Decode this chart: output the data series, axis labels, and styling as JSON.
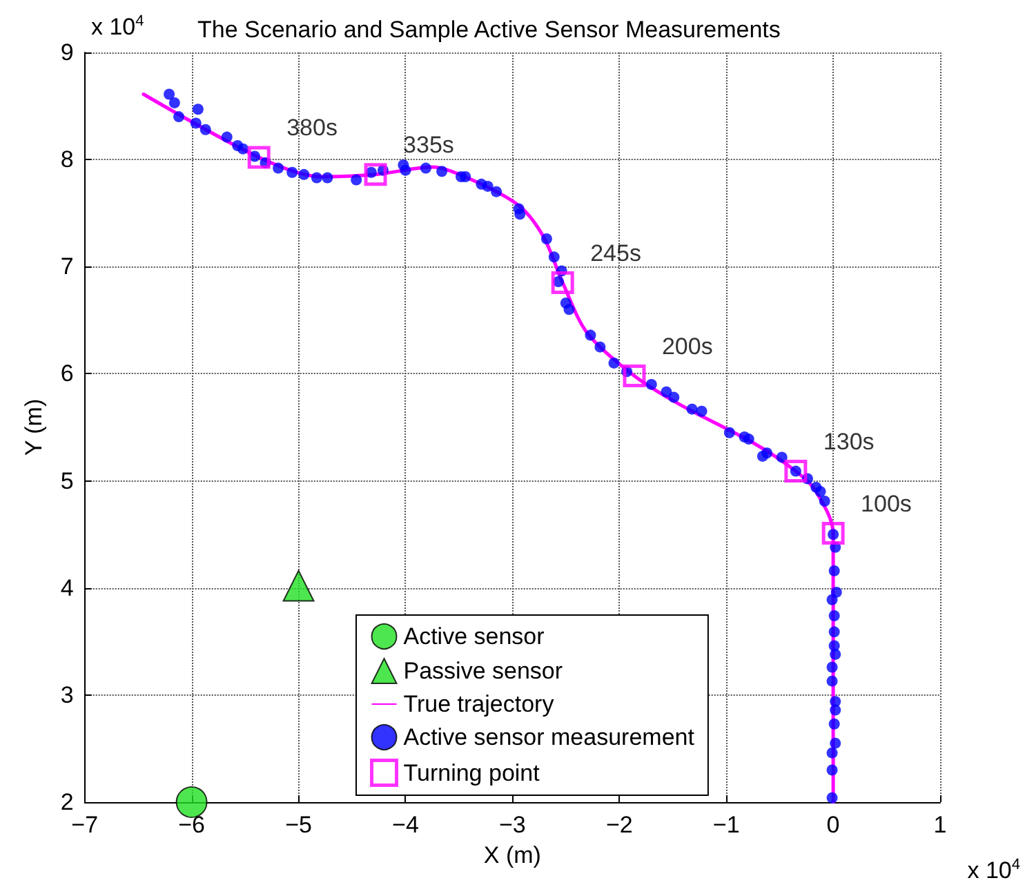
{
  "chart_data": {
    "type": "scatter",
    "title": "The Scenario and Sample Active Sensor Measurements",
    "xlabel": "X (m)",
    "ylabel": "Y (m)",
    "xlim": [
      -7,
      1
    ],
    "xticks": [
      -7,
      -6,
      -5,
      -4,
      -3,
      -2,
      -1,
      0,
      1
    ],
    "ylim": [
      2,
      9
    ],
    "yticks": [
      2,
      3,
      4,
      5,
      6,
      7,
      8,
      9
    ],
    "grid": true,
    "legend": "bottom",
    "annotations": [
      "x 10$^{4}$",
      "x 10$^{4}$",
      {
        "text": "380s",
        "x": -5.37,
        "y": 8.02
      },
      {
        "text": "335s",
        "x": -4.28,
        "y": 7.86
      },
      {
        "text": "245s",
        "x": -2.53,
        "y": 6.85
      },
      {
        "text": "200s",
        "x": -1.86,
        "y": 5.98
      },
      {
        "text": "130s",
        "x": -0.35,
        "y": 5.09
      },
      {
        "text": "100s",
        "x": 0,
        "y": 4.51
      }
    ],
    "series": [
      {
        "name": "Active sensor",
        "marker": "circle",
        "color": "#22e022",
        "x": [
          -6
        ],
        "values": [
          2
        ]
      },
      {
        "name": "Passive sensor",
        "marker": "triangle",
        "color": "#22e022",
        "x": [
          -5
        ],
        "values": [
          4.02
        ]
      },
      {
        "name": "True trajectory",
        "type": "line",
        "marker": "none",
        "line_style": "solid",
        "color": "#ff00ff",
        "x": [
          -6.45,
          -5.37,
          -4.79,
          -4.28,
          -3.75,
          -3.4,
          -2.94,
          -2.71,
          -2.53,
          -2.3,
          -1.86,
          -1.43,
          -0.74,
          -0.35,
          -0.16,
          0,
          0
        ],
        "values": [
          8.61,
          8.02,
          7.84,
          7.86,
          7.93,
          7.82,
          7.57,
          7.28,
          6.85,
          6.38,
          5.98,
          5.71,
          5.35,
          5.09,
          4.9,
          4.51,
          2.0
        ]
      },
      {
        "name": "Active sensor measurement",
        "marker": "circle",
        "color": "#0000ff",
        "x": [
          -6.21,
          -6.16,
          -6.12,
          -5.94,
          -5.96,
          -5.87,
          -5.67,
          -5.57,
          -5.52,
          -5.41,
          -5.31,
          -5.19,
          -5.06,
          -4.95,
          -4.83,
          -4.73,
          -4.46,
          -4.32,
          -4.21,
          -4.02,
          -4.0,
          -3.81,
          -3.66,
          -3.48,
          -3.44,
          -3.29,
          -3.23,
          -3.15,
          -2.94,
          -2.93,
          -2.68,
          -2.61,
          -2.54,
          -2.57,
          -2.5,
          -2.47,
          -2.27,
          -2.18,
          -2.05,
          -1.93,
          -1.7,
          -1.56,
          -1.49,
          -1.32,
          -1.23,
          -0.97,
          -0.83,
          -0.79,
          -0.62,
          -0.66,
          -0.48,
          -0.35,
          -0.24,
          -0.16,
          -0.12,
          -0.08,
          0,
          0.02,
          0.01,
          0.03,
          -0.01,
          0.01,
          0.01,
          0.01,
          0.02,
          -0.01,
          -0.01,
          0.02,
          0.02,
          0.01,
          0.02,
          -0.01,
          -0.01,
          -0.01
        ],
        "values": [
          8.61,
          8.53,
          8.4,
          8.47,
          8.34,
          8.28,
          8.21,
          8.13,
          8.1,
          8.03,
          7.97,
          7.92,
          7.88,
          7.86,
          7.83,
          7.83,
          7.81,
          7.88,
          7.9,
          7.95,
          7.9,
          7.92,
          7.89,
          7.84,
          7.84,
          7.77,
          7.75,
          7.7,
          7.54,
          7.49,
          7.26,
          7.09,
          6.96,
          6.86,
          6.66,
          6.6,
          6.36,
          6.25,
          6.1,
          6.02,
          5.9,
          5.83,
          5.78,
          5.67,
          5.65,
          5.45,
          5.41,
          5.39,
          5.26,
          5.23,
          5.22,
          5.09,
          5.02,
          4.94,
          4.9,
          4.81,
          4.5,
          4.38,
          4.16,
          3.96,
          3.89,
          3.74,
          3.59,
          3.46,
          3.38,
          3.26,
          3.13,
          2.94,
          2.86,
          2.73,
          2.55,
          2.46,
          2.3,
          2.04
        ]
      },
      {
        "name": "Turning point",
        "marker": "square",
        "color": "#ff00ff",
        "x": [
          -5.37,
          -4.28,
          -2.53,
          -1.86,
          -0.35,
          0
        ],
        "values": [
          8.02,
          7.86,
          6.85,
          5.98,
          5.09,
          4.51
        ]
      }
    ]
  }
}
